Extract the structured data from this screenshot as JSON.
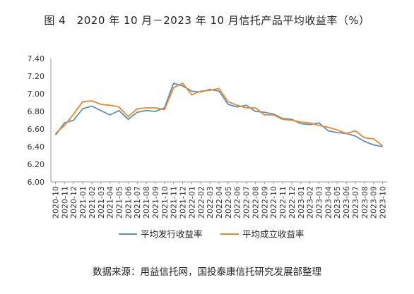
{
  "figure": {
    "title": "图 4　2020 年 10 月－2023 年 10 月信托产品平均收益率（%）",
    "source": "数据来源：用益信托网，国投泰康信托研究发展部整理"
  },
  "chart_data": {
    "type": "line",
    "title": "图 4　2020 年 10 月－2023 年 10 月信托产品平均收益率（%）",
    "xlabel": "",
    "ylabel": "",
    "ylim": [
      6.0,
      7.4
    ],
    "yticks": [
      "7.40",
      "7.20",
      "7.00",
      "6.80",
      "6.60",
      "6.40",
      "6.20",
      "6.00"
    ],
    "grid": false,
    "legend_position": "bottom",
    "categories": [
      "2020-10",
      "2020-11",
      "2020-12",
      "2021-01",
      "2021-02",
      "2021-03",
      "2021-04",
      "2021-05",
      "2021-06",
      "2021-07",
      "2021-08",
      "2021-09",
      "2021-10",
      "2021-11",
      "2021-12",
      "2022-01",
      "2022-02",
      "2022-03",
      "2022-04",
      "2022-05",
      "2022-06",
      "2022-07",
      "2022-08",
      "2022-09",
      "2022-10",
      "2022-11",
      "2022-12",
      "2023-01",
      "2023-02",
      "2023-03",
      "2023-04",
      "2023-05",
      "2023-06",
      "2023-07",
      "2023-08",
      "2023-09",
      "2023-10"
    ],
    "series": [
      {
        "name": "平均发行收益率",
        "color": "#5B8FC0",
        "values": [
          6.53,
          6.67,
          6.7,
          6.83,
          6.86,
          6.81,
          6.76,
          6.81,
          6.71,
          6.79,
          6.81,
          6.8,
          6.84,
          7.12,
          7.09,
          7.03,
          7.02,
          7.05,
          7.03,
          6.88,
          6.85,
          6.87,
          6.8,
          6.79,
          6.77,
          6.72,
          6.71,
          6.66,
          6.65,
          6.67,
          6.58,
          6.56,
          6.55,
          6.52,
          6.46,
          6.42,
          6.4
        ]
      },
      {
        "name": "平均成立收益率",
        "color": "#E8892A",
        "values": [
          6.55,
          6.64,
          6.77,
          6.91,
          6.92,
          6.88,
          6.87,
          6.85,
          6.74,
          6.83,
          6.84,
          6.84,
          6.82,
          7.07,
          7.12,
          6.99,
          7.03,
          7.04,
          7.06,
          6.91,
          6.87,
          6.84,
          6.84,
          6.76,
          6.76,
          6.71,
          6.7,
          6.68,
          6.67,
          6.64,
          6.62,
          6.59,
          6.55,
          6.58,
          6.5,
          6.49,
          6.41
        ]
      }
    ]
  }
}
